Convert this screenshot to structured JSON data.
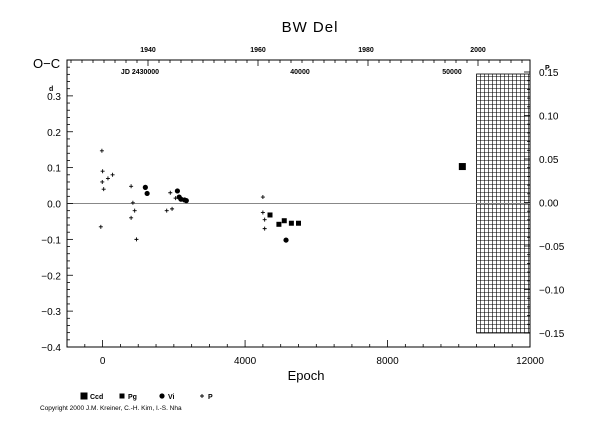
{
  "chart_data": {
    "type": "scatter",
    "title": "BW  Del",
    "ylabel": "O−C",
    "y_unit": "d",
    "xlabel": "Epoch",
    "xlim": [
      -1000,
      12000
    ],
    "ylim": [
      -0.4,
      0.4
    ],
    "x_ticks": [
      "0",
      "4000",
      "8000",
      "12000"
    ],
    "y_ticks": [
      "0.3",
      "0.2",
      "0.1",
      "0.0",
      "−0.1",
      "−0.2",
      "−0.3",
      "−0.4"
    ],
    "top_year_ticks": [
      "1940",
      "1960",
      "1980",
      "2000"
    ],
    "top_jd_ticks": [
      "JD 2430000",
      "40000",
      "50000"
    ],
    "right_ticks": [
      "0.15",
      "0.10",
      "0.05",
      "0.00",
      "−0.05",
      "−0.10",
      "−0.15"
    ],
    "right_unit": "P",
    "grid": false,
    "hatched_region_x": [
      10500,
      12000
    ],
    "legend_position": "bottom-left",
    "series": [
      {
        "name": "Ccd",
        "marker": "square-large",
        "points": [
          [
            10100,
            0.103
          ]
        ]
      },
      {
        "name": "Pg",
        "marker": "square-small",
        "points": [
          [
            4700,
            -0.032
          ],
          [
            4950,
            -0.058
          ],
          [
            5100,
            -0.048
          ],
          [
            5300,
            -0.055
          ],
          [
            5500,
            -0.055
          ]
        ]
      },
      {
        "name": "Vi",
        "marker": "dot",
        "points": [
          [
            1200,
            0.045
          ],
          [
            1250,
            0.028
          ],
          [
            2100,
            0.035
          ],
          [
            2150,
            0.018
          ],
          [
            2200,
            0.012
          ],
          [
            2300,
            0.01
          ],
          [
            2350,
            0.008
          ],
          [
            5150,
            -0.102
          ]
        ]
      },
      {
        "name": "P",
        "marker": "plus",
        "points": [
          [
            -20,
            0.147
          ],
          [
            0,
            0.09
          ],
          [
            -10,
            0.06
          ],
          [
            30,
            0.04
          ],
          [
            150,
            0.07
          ],
          [
            280,
            0.08
          ],
          [
            -50,
            -0.065
          ],
          [
            800,
            0.048
          ],
          [
            800,
            -0.04
          ],
          [
            850,
            0.002
          ],
          [
            900,
            -0.02
          ],
          [
            950,
            -0.1
          ],
          [
            1800,
            -0.02
          ],
          [
            1900,
            0.03
          ],
          [
            1950,
            -0.015
          ],
          [
            2050,
            0.015
          ],
          [
            4500,
            0.018
          ],
          [
            4500,
            -0.025
          ],
          [
            4550,
            -0.045
          ],
          [
            4550,
            -0.07
          ]
        ]
      }
    ]
  },
  "copyright": "Copyright 2000 J.M. Kreiner, C.-H. Kim, I.-S. Nha"
}
